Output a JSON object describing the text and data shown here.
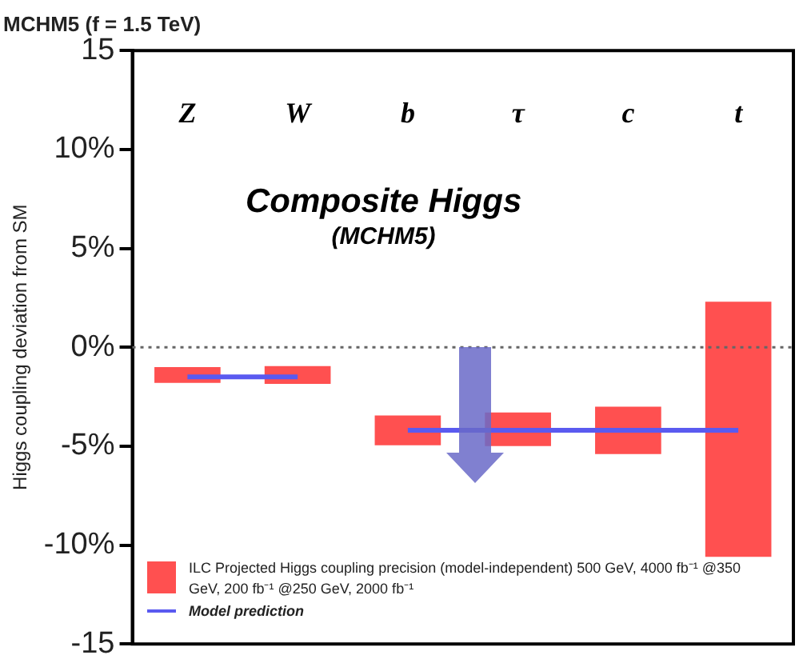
{
  "chart_data": {
    "type": "bar",
    "title": "MCHM5 (f = 1.5 TeV)",
    "ylabel": "Higgs coupling deviation from SM",
    "categories": [
      "Z",
      "W",
      "b",
      "τ",
      "c",
      "t"
    ],
    "series": [
      {
        "name": "ILC Projected Higgs coupling precision (model-independent) 500 GeV, 4000 fb⁻¹ @350 GeV, 200 fb⁻¹ @250 GeV, 2000 fb⁻¹",
        "color": "#ff5050",
        "base": [
          -1.8,
          -1.85,
          -4.95,
          -5.0,
          -5.4,
          -10.6
        ],
        "values": [
          0.8,
          0.9,
          1.5,
          1.7,
          2.4,
          12.9
        ]
      },
      {
        "name": "Model prediction",
        "type": "line",
        "color": "#5a5af0",
        "values": [
          -1.5,
          -1.5,
          null,
          null,
          null,
          null
        ]
      },
      {
        "type": "line",
        "color": "#5a5af0",
        "values": [
          null,
          null,
          -4.2,
          -4.2,
          -4.2,
          -4.2
        ]
      }
    ],
    "ylim": [
      -15,
      15
    ],
    "yticks": [
      {
        "value": 15,
        "label": "15"
      },
      {
        "value": 10,
        "label": "10%"
      },
      {
        "value": 5,
        "label": "5%"
      },
      {
        "value": 0,
        "label": "0%"
      },
      {
        "value": -5,
        "label": "-5%"
      },
      {
        "value": -10,
        "label": "-10%"
      },
      {
        "value": -15,
        "label": "-15"
      }
    ],
    "ref_lines": [
      {
        "axis": "y",
        "value": 0,
        "color": "#666666",
        "line_style": "dotted"
      }
    ],
    "annotations": [
      "Composite Higgs",
      "(MCHM5)"
    ],
    "legend": "bottom left",
    "grid": false,
    "marker": "none"
  }
}
